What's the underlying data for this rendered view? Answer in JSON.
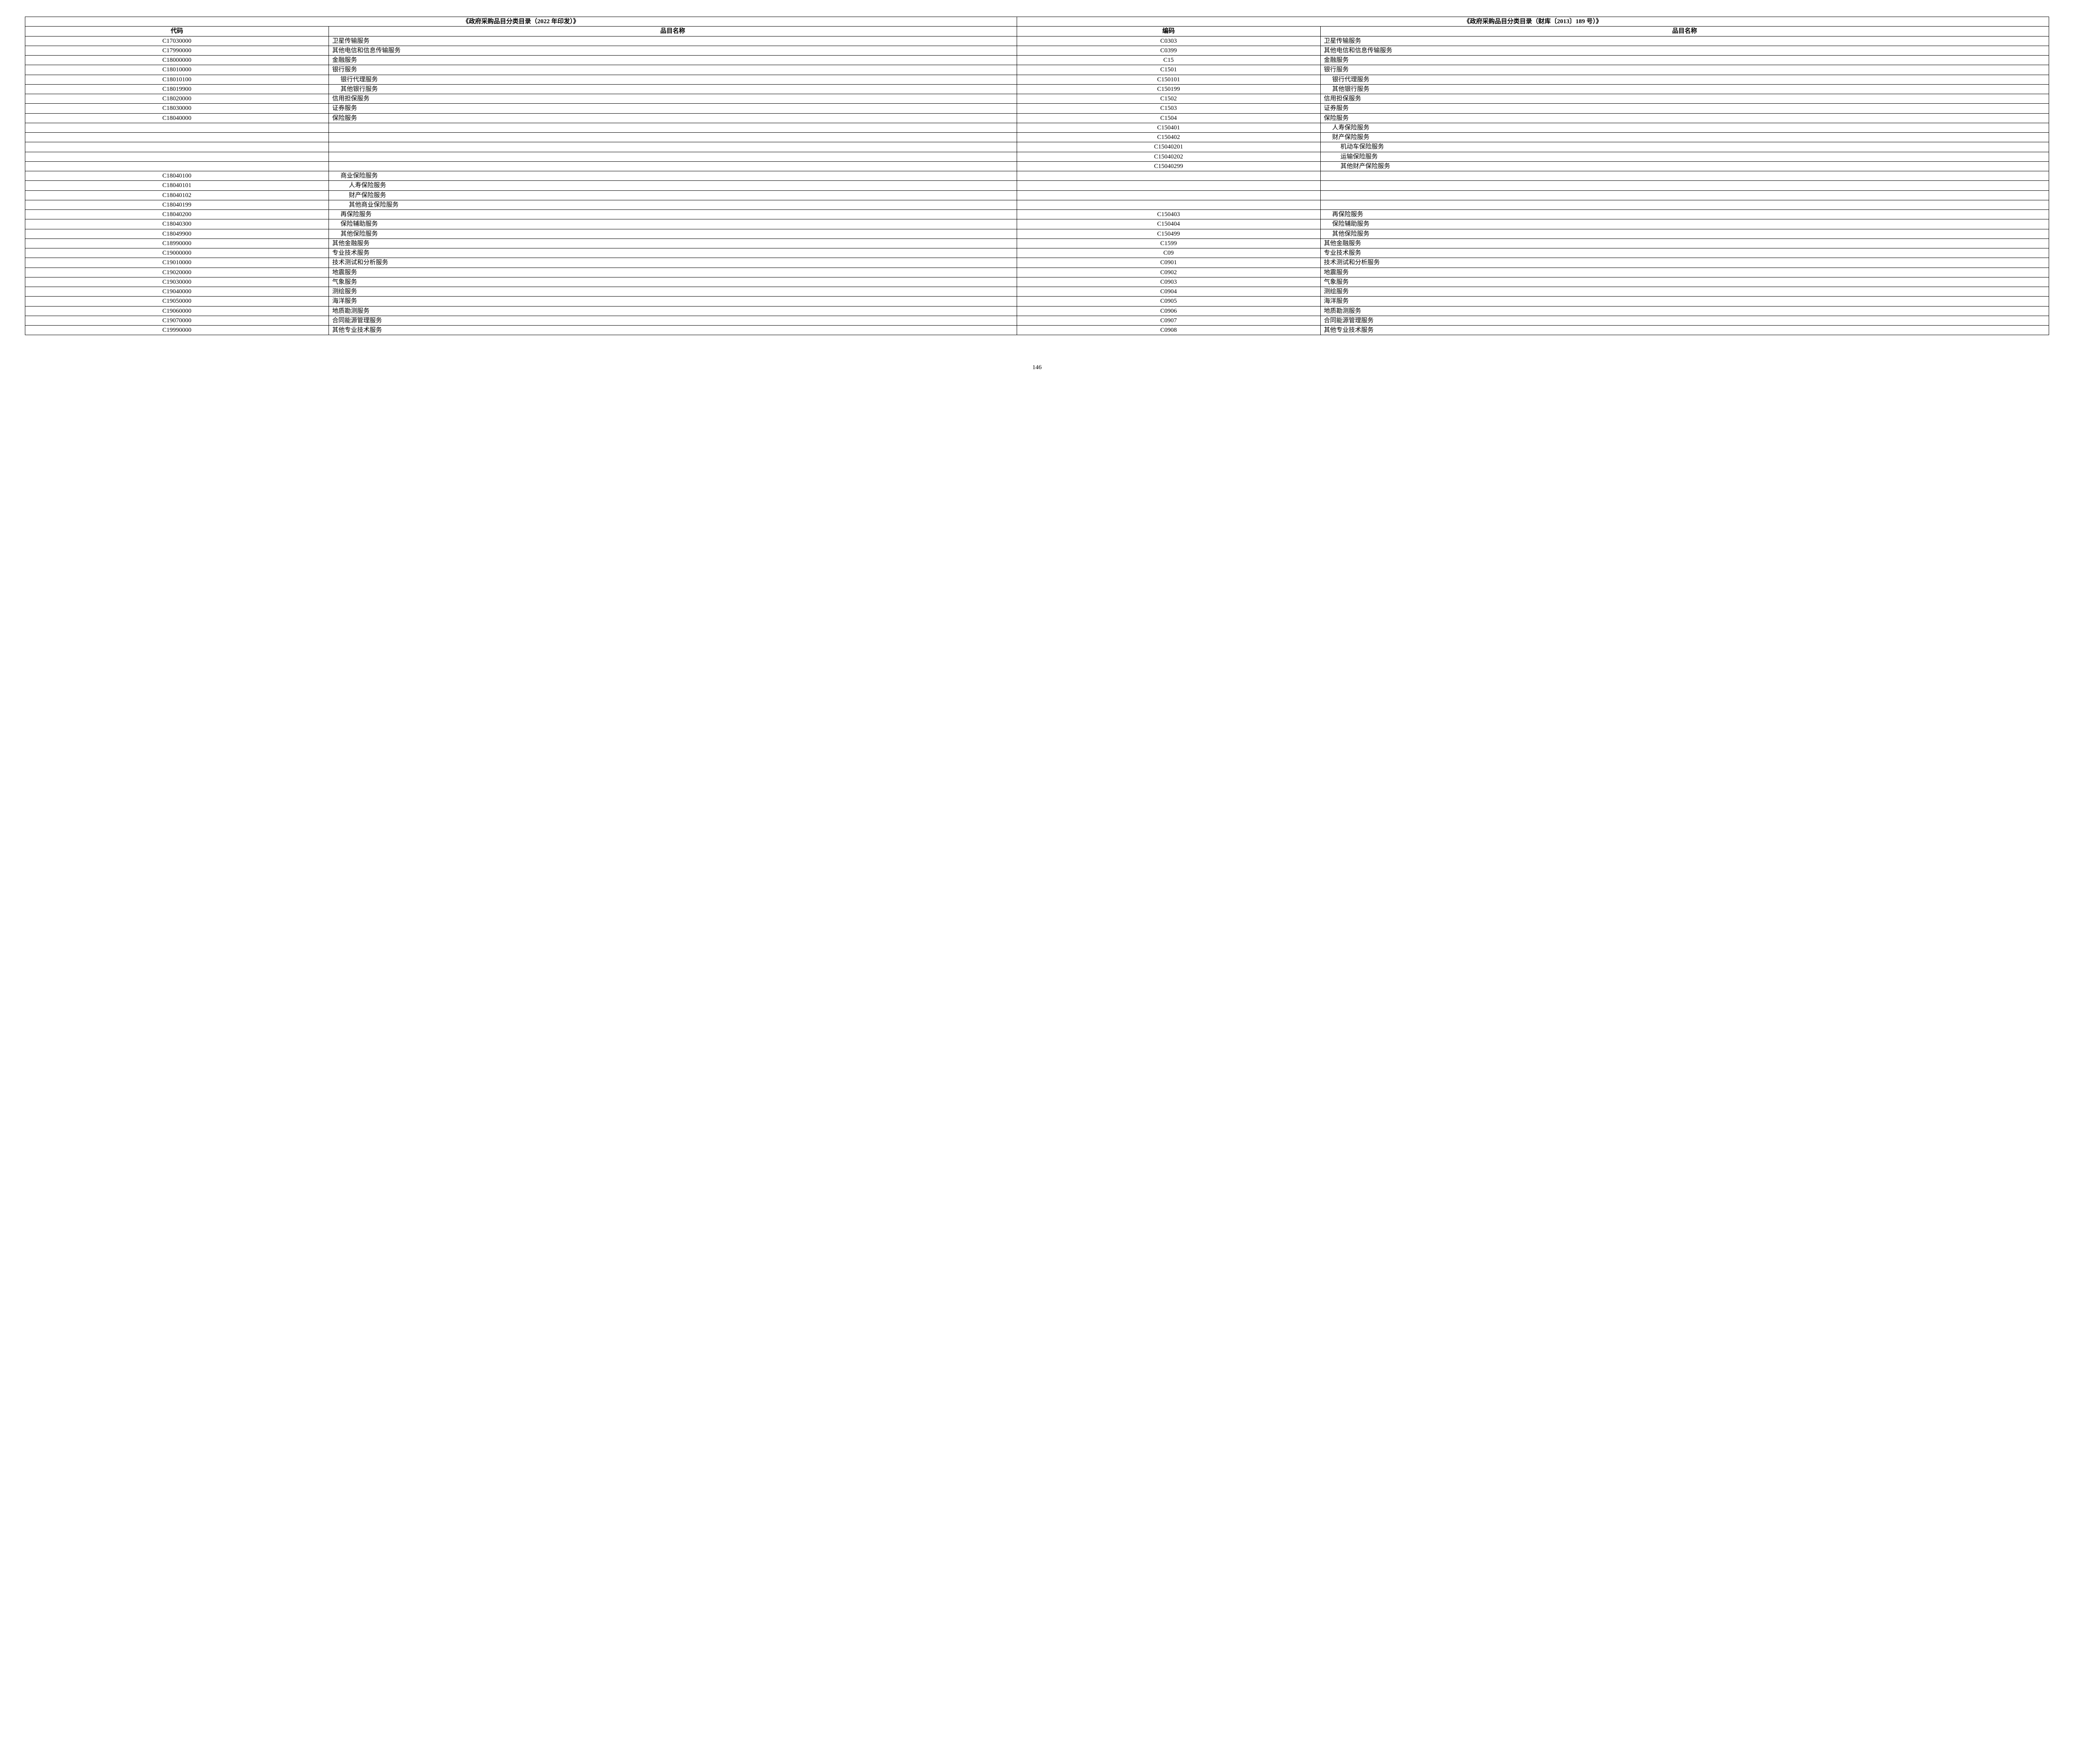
{
  "table": {
    "header_group_left": "《政府采购品目分类目录（2022 年印发）》",
    "header_group_right": "《政府采购品目分类目录（财库〔2013〕189 号）》",
    "col_headers": [
      "代码",
      "品目名称",
      "编码",
      "品目名称"
    ],
    "colors": {
      "border": "#000000",
      "background": "#ffffff",
      "text": "#000000"
    },
    "rows": [
      {
        "c1": "C17030000",
        "c2": "卫星传输服务",
        "c2s": "al-left",
        "c3": "C0303",
        "c4": "卫星传输服务",
        "c4s": "al-left"
      },
      {
        "c1": "C17990000",
        "c2": "其他电信和信息传输服务",
        "c2s": "al-left",
        "c3": "C0399",
        "c4": "其他电信和信息传输服务",
        "c4s": "al-left"
      },
      {
        "c1": "C18000000",
        "c2": "金融服务",
        "c2s": "al-left",
        "c3": "C15",
        "c4": "金融服务",
        "c4s": "al-left"
      },
      {
        "c1": "C18010000",
        "c2": "银行服务",
        "c2s": "al-left",
        "c3": "C1501",
        "c4": "银行服务",
        "c4s": "al-left"
      },
      {
        "c1": "C18010100",
        "c2": "银行代理服务",
        "c2s": "indent1",
        "c3": "C150101",
        "c4": "银行代理服务",
        "c4s": "indent1"
      },
      {
        "c1": "C18019900",
        "c2": "其他银行服务",
        "c2s": "indent1",
        "c3": "C150199",
        "c4": "其他银行服务",
        "c4s": "indent1"
      },
      {
        "c1": "C18020000",
        "c2": "信用担保服务",
        "c2s": "al-left",
        "c3": "C1502",
        "c4": "信用担保服务",
        "c4s": "al-left"
      },
      {
        "c1": "C18030000",
        "c2": "证券服务",
        "c2s": "al-left",
        "c3": "C1503",
        "c4": "证券服务",
        "c4s": "al-left"
      },
      {
        "c1": "C18040000",
        "c2": "保险服务",
        "c2s": "al-left",
        "c3": "C1504",
        "c4": "保险服务",
        "c4s": "al-left"
      },
      {
        "c1": "",
        "c2": "",
        "c2s": "al-left",
        "c3": "C150401",
        "c4": "人寿保险服务",
        "c4s": "indent1"
      },
      {
        "c1": "",
        "c2": "",
        "c2s": "al-left",
        "c3": "C150402",
        "c4": "财产保险服务",
        "c4s": "indent1"
      },
      {
        "c1": "",
        "c2": "",
        "c2s": "al-left",
        "c3": "C15040201",
        "c4": "机动车保险服务",
        "c4s": "indent2"
      },
      {
        "c1": "",
        "c2": "",
        "c2s": "al-left",
        "c3": "C15040202",
        "c4": "运输保险服务",
        "c4s": "indent2"
      },
      {
        "c1": "",
        "c2": "",
        "c2s": "al-left",
        "c3": "C15040299",
        "c4": "其他财产保险服务",
        "c4s": "indent2"
      },
      {
        "c1": "C18040100",
        "c2": "商业保险服务",
        "c2s": "indent1",
        "c3": "",
        "c4": "",
        "c4s": "al-left"
      },
      {
        "c1": "C18040101",
        "c2": "人寿保险服务",
        "c2s": "indent2",
        "c3": "",
        "c4": "",
        "c4s": "al-left"
      },
      {
        "c1": "C18040102",
        "c2": "财产保险服务",
        "c2s": "indent2",
        "c3": "",
        "c4": "",
        "c4s": "al-left"
      },
      {
        "c1": "C18040199",
        "c2": "其他商业保险服务",
        "c2s": "indent2",
        "c3": "",
        "c4": "",
        "c4s": "al-left"
      },
      {
        "c1": "C18040200",
        "c2": "再保险服务",
        "c2s": "indent1",
        "c3": "C150403",
        "c4": "再保险服务",
        "c4s": "indent1"
      },
      {
        "c1": "C18040300",
        "c2": "保险辅助服务",
        "c2s": "indent1",
        "c3": "C150404",
        "c4": "保险辅助服务",
        "c4s": "indent1"
      },
      {
        "c1": "C18049900",
        "c2": "其他保险服务",
        "c2s": "indent1",
        "c3": "C150499",
        "c4": "其他保险服务",
        "c4s": "indent1"
      },
      {
        "c1": "C18990000",
        "c2": "其他金融服务",
        "c2s": "al-left",
        "c3": "C1599",
        "c4": "其他金融服务",
        "c4s": "al-left"
      },
      {
        "c1": "C19000000",
        "c2": "专业技术服务",
        "c2s": "al-left",
        "c3": "C09",
        "c4": "专业技术服务",
        "c4s": "al-left"
      },
      {
        "c1": "C19010000",
        "c2": "技术测试和分析服务",
        "c2s": "al-left",
        "c3": "C0901",
        "c4": "技术测试和分析服务",
        "c4s": "al-left"
      },
      {
        "c1": "C19020000",
        "c2": "地震服务",
        "c2s": "al-left",
        "c3": "C0902",
        "c4": "地震服务",
        "c4s": "al-left"
      },
      {
        "c1": "C19030000",
        "c2": "气象服务",
        "c2s": "al-left",
        "c3": "C0903",
        "c4": "气象服务",
        "c4s": "al-left"
      },
      {
        "c1": "C19040000",
        "c2": "测绘服务",
        "c2s": "al-left",
        "c3": "C0904",
        "c4": "测绘服务",
        "c4s": "al-left"
      },
      {
        "c1": "C19050000",
        "c2": "海洋服务",
        "c2s": "al-left",
        "c3": "C0905",
        "c4": "海洋服务",
        "c4s": "al-left"
      },
      {
        "c1": "C19060000",
        "c2": "地质勘测服务",
        "c2s": "al-left",
        "c3": "C0906",
        "c4": "地质勘测服务",
        "c4s": "al-left"
      },
      {
        "c1": "C19070000",
        "c2": "合同能源管理服务",
        "c2s": "al-left",
        "c3": "C0907",
        "c4": "合同能源管理服务",
        "c4s": "al-left"
      },
      {
        "c1": "C19990000",
        "c2": "其他专业技术服务",
        "c2s": "al-left",
        "c3": "C0908",
        "c4": "其他专业技术服务",
        "c4s": "al-left"
      }
    ]
  },
  "page_number": "146"
}
